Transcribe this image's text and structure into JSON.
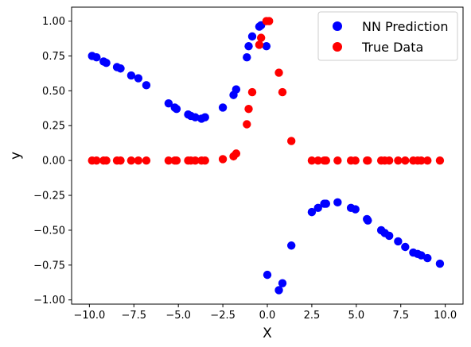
{
  "chart_data": {
    "type": "scatter",
    "title": "",
    "xlabel": "X",
    "ylabel": "y",
    "xlim": [
      -11.0,
      11.0
    ],
    "ylim": [
      -1.03,
      1.1
    ],
    "xticks": [
      -10.0,
      -7.5,
      -5.0,
      -2.5,
      0.0,
      2.5,
      5.0,
      7.5,
      10.0
    ],
    "xtick_labels": [
      "−10.0",
      "−7.5",
      "−5.0",
      "−2.5",
      "0.0",
      "2.5",
      "5.0",
      "7.5",
      "10.0"
    ],
    "yticks": [
      -1.0,
      -0.75,
      -0.5,
      -0.25,
      0.0,
      0.25,
      0.5,
      0.75,
      1.0
    ],
    "ytick_labels": [
      "−1.00",
      "−0.75",
      "−0.50",
      "−0.25",
      "0.00",
      "0.25",
      "0.50",
      "0.75",
      "1.00"
    ],
    "grid": false,
    "legend": {
      "position": "top-right"
    },
    "series": [
      {
        "name": "NN Prediction",
        "color": "#0000ff",
        "points": [
          [
            -9.85,
            0.75
          ],
          [
            -9.6,
            0.74
          ],
          [
            -9.2,
            0.71
          ],
          [
            -9.05,
            0.7
          ],
          [
            -8.45,
            0.67
          ],
          [
            -8.25,
            0.66
          ],
          [
            -7.65,
            0.61
          ],
          [
            -7.25,
            0.59
          ],
          [
            -6.8,
            0.54
          ],
          [
            -5.55,
            0.41
          ],
          [
            -5.2,
            0.38
          ],
          [
            -5.1,
            0.37
          ],
          [
            -4.45,
            0.33
          ],
          [
            -4.3,
            0.32
          ],
          [
            -4.05,
            0.31
          ],
          [
            -3.7,
            0.3
          ],
          [
            -3.5,
            0.31
          ],
          [
            -2.5,
            0.38
          ],
          [
            -1.9,
            0.47
          ],
          [
            -1.75,
            0.51
          ],
          [
            -1.15,
            0.74
          ],
          [
            -1.05,
            0.82
          ],
          [
            -0.85,
            0.89
          ],
          [
            -0.45,
            0.96
          ],
          [
            -0.35,
            0.97
          ],
          [
            -0.05,
            0.82
          ],
          [
            0.0,
            -0.82
          ],
          [
            0.65,
            -0.93
          ],
          [
            0.85,
            -0.88
          ],
          [
            1.35,
            -0.61
          ],
          [
            2.5,
            -0.37
          ],
          [
            2.85,
            -0.34
          ],
          [
            3.2,
            -0.31
          ],
          [
            3.3,
            -0.31
          ],
          [
            3.95,
            -0.3
          ],
          [
            4.7,
            -0.34
          ],
          [
            4.95,
            -0.35
          ],
          [
            5.6,
            -0.42
          ],
          [
            5.65,
            -0.43
          ],
          [
            6.4,
            -0.5
          ],
          [
            6.6,
            -0.52
          ],
          [
            6.85,
            -0.54
          ],
          [
            7.35,
            -0.58
          ],
          [
            7.75,
            -0.62
          ],
          [
            8.2,
            -0.66
          ],
          [
            8.45,
            -0.67
          ],
          [
            8.65,
            -0.68
          ],
          [
            9.0,
            -0.7
          ],
          [
            9.7,
            -0.74
          ]
        ]
      },
      {
        "name": "True Data",
        "color": "#ff0000",
        "points": [
          [
            -9.85,
            0.0
          ],
          [
            -9.6,
            0.0
          ],
          [
            -9.2,
            0.0
          ],
          [
            -9.05,
            0.0
          ],
          [
            -8.45,
            0.0
          ],
          [
            -8.25,
            0.0
          ],
          [
            -7.65,
            0.0
          ],
          [
            -7.25,
            0.0
          ],
          [
            -6.8,
            0.0
          ],
          [
            -5.55,
            0.0
          ],
          [
            -5.2,
            0.0
          ],
          [
            -5.1,
            0.0
          ],
          [
            -4.45,
            0.0
          ],
          [
            -4.3,
            0.0
          ],
          [
            -4.05,
            0.0
          ],
          [
            -3.7,
            0.0
          ],
          [
            -3.5,
            0.0
          ],
          [
            -2.5,
            0.01
          ],
          [
            -1.9,
            0.03
          ],
          [
            -1.75,
            0.05
          ],
          [
            -1.15,
            0.26
          ],
          [
            -1.05,
            0.37
          ],
          [
            -0.85,
            0.49
          ],
          [
            -0.45,
            0.83
          ],
          [
            -0.35,
            0.88
          ],
          [
            -0.05,
            1.0
          ],
          [
            0.1,
            1.0
          ],
          [
            0.65,
            0.63
          ],
          [
            0.85,
            0.49
          ],
          [
            1.35,
            0.14
          ],
          [
            2.5,
            0.0
          ],
          [
            2.85,
            0.0
          ],
          [
            3.2,
            0.0
          ],
          [
            3.3,
            0.0
          ],
          [
            3.95,
            0.0
          ],
          [
            4.7,
            0.0
          ],
          [
            4.95,
            0.0
          ],
          [
            5.6,
            0.0
          ],
          [
            5.65,
            0.0
          ],
          [
            6.4,
            0.0
          ],
          [
            6.6,
            0.0
          ],
          [
            6.85,
            0.0
          ],
          [
            7.35,
            0.0
          ],
          [
            7.75,
            0.0
          ],
          [
            8.2,
            0.0
          ],
          [
            8.45,
            0.0
          ],
          [
            8.65,
            0.0
          ],
          [
            9.0,
            0.0
          ],
          [
            9.7,
            0.0
          ]
        ]
      }
    ]
  }
}
